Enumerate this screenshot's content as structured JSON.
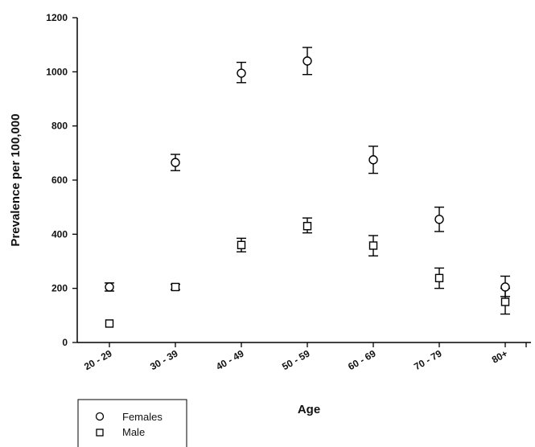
{
  "chart_data": {
    "type": "scatter",
    "xlabel": "Age",
    "ylabel": "Prevalence per 100,000",
    "categories": [
      "20 - 29",
      "30 - 39",
      "40 - 49",
      "50 - 59",
      "60 - 69",
      "70 - 79",
      "80+"
    ],
    "ylim": [
      0,
      1200
    ],
    "yticks": [
      0,
      200,
      400,
      600,
      800,
      1000,
      1200
    ],
    "grid": false,
    "legend_position": "bottom-left",
    "series": [
      {
        "name": "Females",
        "marker": "circle",
        "values": [
          205,
          665,
          995,
          1040,
          675,
          455,
          205
        ],
        "error_low": [
          190,
          635,
          960,
          990,
          625,
          410,
          170
        ],
        "error_high": [
          220,
          695,
          1035,
          1090,
          725,
          500,
          245
        ]
      },
      {
        "name": "Male",
        "marker": "square",
        "values": [
          70,
          205,
          360,
          430,
          358,
          238,
          150
        ],
        "error_low": [
          70,
          195,
          335,
          405,
          320,
          200,
          105
        ],
        "error_high": [
          70,
          215,
          385,
          460,
          395,
          275,
          200
        ]
      }
    ]
  }
}
